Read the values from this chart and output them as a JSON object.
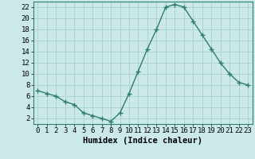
{
  "x": [
    0,
    1,
    2,
    3,
    4,
    5,
    6,
    7,
    8,
    9,
    10,
    11,
    12,
    13,
    14,
    15,
    16,
    17,
    18,
    19,
    20,
    21,
    22,
    23
  ],
  "y": [
    7.0,
    6.5,
    6.0,
    5.0,
    4.5,
    3.0,
    2.5,
    2.0,
    1.5,
    3.0,
    6.5,
    10.5,
    14.5,
    18.0,
    22.0,
    22.5,
    22.0,
    19.5,
    17.0,
    14.5,
    12.0,
    10.0,
    8.5,
    8.0
  ],
  "line_color": "#2e7d6e",
  "marker": "+",
  "bg_color": "#cce9e9",
  "grid_color": "#aacfcf",
  "xlabel": "Humidex (Indice chaleur)",
  "xlim": [
    -0.5,
    23.5
  ],
  "ylim": [
    1,
    23
  ],
  "yticks": [
    2,
    4,
    6,
    8,
    10,
    12,
    14,
    16,
    18,
    20,
    22
  ],
  "xticks": [
    0,
    1,
    2,
    3,
    4,
    5,
    6,
    7,
    8,
    9,
    10,
    11,
    12,
    13,
    14,
    15,
    16,
    17,
    18,
    19,
    20,
    21,
    22,
    23
  ],
  "xlabel_fontsize": 7.5,
  "tick_fontsize": 6.5,
  "linewidth": 1.0,
  "markersize": 4,
  "markeredgewidth": 1.0
}
